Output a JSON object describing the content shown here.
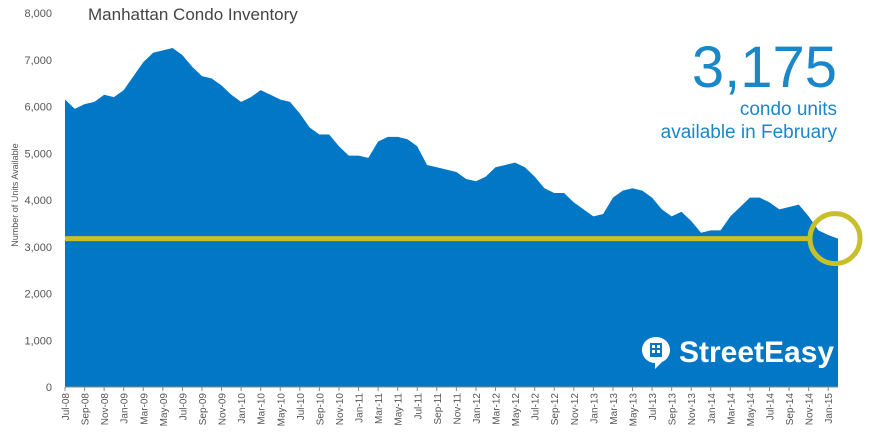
{
  "title": "Manhattan Condo Inventory",
  "callout": {
    "value": "3,175",
    "line1": "condo units",
    "line2": "available in February"
  },
  "brand": {
    "name": "StreetEasy",
    "icon": "building-speech-bubble-icon"
  },
  "colors": {
    "area": "#0277c5",
    "reference_line": "#c8c02b",
    "callout": "#1a87c8",
    "brand_text": "#ffffff"
  },
  "chart_data": {
    "type": "area",
    "ylabel": "Number of Units Available",
    "ylim": [
      0,
      8000
    ],
    "yticks": [
      0,
      1000,
      2000,
      3000,
      4000,
      5000,
      6000,
      7000,
      8000
    ],
    "ytick_labels": [
      "0",
      "1,000",
      "2,000",
      "3,000",
      "4,000",
      "5,000",
      "6,000",
      "7,000",
      "8,000"
    ],
    "x_tick_labels": [
      "Jul-08",
      "Sep-08",
      "Nov-08",
      "Jan-09",
      "Mar-09",
      "May-09",
      "Jul-09",
      "Sep-09",
      "Nov-09",
      "Jan-10",
      "Mar-10",
      "May-10",
      "Jul-10",
      "Sep-10",
      "Nov-10",
      "Jan-11",
      "Mar-11",
      "May-11",
      "Jul-11",
      "Sep-11",
      "Nov-11",
      "Jan-12",
      "Mar-12",
      "May-12",
      "Jul-12",
      "Sep-12",
      "Nov-12",
      "Jan-13",
      "Mar-13",
      "May-13",
      "Jul-13",
      "Sep-13",
      "Nov-13",
      "Jan-14",
      "Mar-14",
      "May-14",
      "Jul-14",
      "Sep-14",
      "Nov-14",
      "Jan-15"
    ],
    "x_start": "Jul-08",
    "x_end": "Feb-15",
    "values": [
      6150,
      5950,
      6050,
      6100,
      6250,
      6200,
      6350,
      6650,
      6950,
      7150,
      7200,
      7250,
      7100,
      6850,
      6650,
      6600,
      6450,
      6250,
      6100,
      6200,
      6350,
      6250,
      6150,
      6100,
      5850,
      5550,
      5400,
      5400,
      5150,
      4950,
      4950,
      4900,
      5250,
      5350,
      5350,
      5300,
      5150,
      4750,
      4700,
      4650,
      4600,
      4450,
      4400,
      4500,
      4700,
      4750,
      4800,
      4700,
      4500,
      4250,
      4150,
      4150,
      3950,
      3800,
      3650,
      3700,
      4050,
      4200,
      4250,
      4200,
      4050,
      3800,
      3650,
      3750,
      3550,
      3300,
      3350,
      3350,
      3650,
      3850,
      4050,
      4050,
      3950,
      3800,
      3850,
      3900,
      3650,
      3350,
      3250,
      3175
    ],
    "reference_value": 3175,
    "reference_label": "3,175",
    "grid": false
  }
}
